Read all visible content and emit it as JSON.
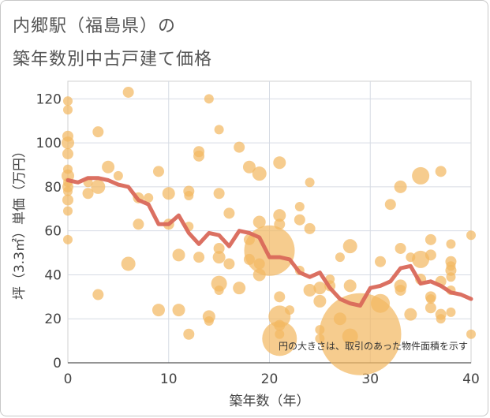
{
  "title_line1": "内郷駅（福島県）の",
  "title_line2": "築年数別中古戸建て価格",
  "chart_data": {
    "type": "scatter",
    "title": "内郷駅（福島県）の 築年数別中古戸建て価格",
    "xlabel": "築年数（年）",
    "ylabel": "坪（3.3㎡）単価（万円）",
    "xlim": [
      0,
      40
    ],
    "ylim": [
      0,
      128
    ],
    "xticks": [
      0,
      10,
      20,
      30,
      40
    ],
    "yticks": [
      0,
      20,
      40,
      60,
      80,
      100,
      120
    ],
    "grid": true,
    "note": "円の大きさは、取引のあった物件面積を示す",
    "colors": {
      "bubble": "#f3b862",
      "line": "#d9685a",
      "grid": "#d6dbe4",
      "plot_border": "#d0d0d0"
    },
    "series": [
      {
        "name": "average",
        "kind": "line",
        "x": [
          0,
          1,
          2,
          3,
          4,
          5,
          6,
          7,
          8,
          9,
          10,
          11,
          12,
          13,
          14,
          15,
          16,
          17,
          18,
          19,
          20,
          21,
          22,
          23,
          24,
          25,
          26,
          27,
          28,
          29,
          30,
          31,
          32,
          33,
          34,
          35,
          36,
          37,
          38,
          39,
          40
        ],
        "y": [
          83,
          82,
          84,
          84,
          83,
          81,
          80,
          74,
          72,
          63,
          63,
          67,
          59,
          54,
          59,
          58,
          53,
          60,
          59,
          57,
          48,
          48,
          47,
          41,
          39,
          41,
          34,
          29,
          27,
          26,
          34,
          35,
          37,
          43,
          44,
          36,
          37,
          35,
          32,
          31,
          29
        ]
      },
      {
        "name": "transactions",
        "kind": "bubble",
        "points": [
          {
            "x": 0,
            "y": 119,
            "s": 6
          },
          {
            "x": 0,
            "y": 115,
            "s": 6
          },
          {
            "x": 0,
            "y": 103,
            "s": 7
          },
          {
            "x": 0,
            "y": 100,
            "s": 8
          },
          {
            "x": 0,
            "y": 95,
            "s": 7
          },
          {
            "x": 0,
            "y": 88,
            "s": 6
          },
          {
            "x": 0,
            "y": 85,
            "s": 8
          },
          {
            "x": 0,
            "y": 82,
            "s": 6
          },
          {
            "x": 0,
            "y": 80,
            "s": 7
          },
          {
            "x": 0,
            "y": 78,
            "s": 6
          },
          {
            "x": 0,
            "y": 74,
            "s": 7
          },
          {
            "x": 0,
            "y": 69,
            "s": 6
          },
          {
            "x": 0,
            "y": 56,
            "s": 6
          },
          {
            "x": 2,
            "y": 82,
            "s": 6
          },
          {
            "x": 2,
            "y": 77,
            "s": 7
          },
          {
            "x": 3,
            "y": 105,
            "s": 7
          },
          {
            "x": 3,
            "y": 80,
            "s": 9
          },
          {
            "x": 3,
            "y": 31,
            "s": 7
          },
          {
            "x": 4,
            "y": 89,
            "s": 8
          },
          {
            "x": 5,
            "y": 85,
            "s": 6
          },
          {
            "x": 6,
            "y": 123,
            "s": 7
          },
          {
            "x": 6,
            "y": 45,
            "s": 9
          },
          {
            "x": 7,
            "y": 75,
            "s": 7
          },
          {
            "x": 7,
            "y": 63,
            "s": 7
          },
          {
            "x": 8,
            "y": 75,
            "s": 6
          },
          {
            "x": 9,
            "y": 87,
            "s": 7
          },
          {
            "x": 9,
            "y": 24,
            "s": 8
          },
          {
            "x": 10,
            "y": 77,
            "s": 8
          },
          {
            "x": 10,
            "y": 63,
            "s": 7
          },
          {
            "x": 11,
            "y": 49,
            "s": 8
          },
          {
            "x": 11,
            "y": 24,
            "s": 8
          },
          {
            "x": 12,
            "y": 78,
            "s": 7
          },
          {
            "x": 12,
            "y": 76,
            "s": 6
          },
          {
            "x": 12,
            "y": 62,
            "s": 6
          },
          {
            "x": 12,
            "y": 13,
            "s": 7
          },
          {
            "x": 13,
            "y": 96,
            "s": 7
          },
          {
            "x": 13,
            "y": 94,
            "s": 7
          },
          {
            "x": 13,
            "y": 48,
            "s": 7
          },
          {
            "x": 14,
            "y": 120,
            "s": 6
          },
          {
            "x": 14,
            "y": 21,
            "s": 8
          },
          {
            "x": 14,
            "y": 19,
            "s": 6
          },
          {
            "x": 15,
            "y": 106,
            "s": 6
          },
          {
            "x": 15,
            "y": 77,
            "s": 7
          },
          {
            "x": 15,
            "y": 52,
            "s": 7
          },
          {
            "x": 15,
            "y": 48,
            "s": 8
          },
          {
            "x": 15,
            "y": 36,
            "s": 10
          },
          {
            "x": 15,
            "y": 33,
            "s": 6
          },
          {
            "x": 16,
            "y": 68,
            "s": 7
          },
          {
            "x": 16,
            "y": 45,
            "s": 7
          },
          {
            "x": 17,
            "y": 98,
            "s": 7
          },
          {
            "x": 17,
            "y": 34,
            "s": 8
          },
          {
            "x": 18,
            "y": 89,
            "s": 8
          },
          {
            "x": 18,
            "y": 56,
            "s": 7
          },
          {
            "x": 18,
            "y": 47,
            "s": 7
          },
          {
            "x": 19,
            "y": 86,
            "s": 9
          },
          {
            "x": 19,
            "y": 64,
            "s": 8
          },
          {
            "x": 19,
            "y": 45,
            "s": 7
          },
          {
            "x": 19,
            "y": 40,
            "s": 8
          },
          {
            "x": 20,
            "y": 51,
            "s": 32
          },
          {
            "x": 21,
            "y": 91,
            "s": 8
          },
          {
            "x": 21,
            "y": 67,
            "s": 8
          },
          {
            "x": 21,
            "y": 63,
            "s": 7
          },
          {
            "x": 21,
            "y": 30,
            "s": 7
          },
          {
            "x": 21,
            "y": 21,
            "s": 14
          },
          {
            "x": 21,
            "y": 17,
            "s": 7
          },
          {
            "x": 21,
            "y": 13,
            "s": 6
          },
          {
            "x": 21,
            "y": 11,
            "s": 22
          },
          {
            "x": 22,
            "y": 24,
            "s": 6
          },
          {
            "x": 23,
            "y": 71,
            "s": 6
          },
          {
            "x": 23,
            "y": 65,
            "s": 7
          },
          {
            "x": 23,
            "y": 42,
            "s": 6
          },
          {
            "x": 24,
            "y": 82,
            "s": 6
          },
          {
            "x": 24,
            "y": 61,
            "s": 7
          },
          {
            "x": 24,
            "y": 33,
            "s": 8
          },
          {
            "x": 25,
            "y": 34,
            "s": 8
          },
          {
            "x": 25,
            "y": 28,
            "s": 8
          },
          {
            "x": 25,
            "y": 15,
            "s": 6
          },
          {
            "x": 25,
            "y": 11,
            "s": 6
          },
          {
            "x": 26,
            "y": 38,
            "s": 6
          },
          {
            "x": 26,
            "y": 35,
            "s": 7
          },
          {
            "x": 27,
            "y": 48,
            "s": 6
          },
          {
            "x": 27,
            "y": 20,
            "s": 8
          },
          {
            "x": 28,
            "y": 53,
            "s": 9
          },
          {
            "x": 28,
            "y": 35,
            "s": 8
          },
          {
            "x": 28,
            "y": 12,
            "s": 10
          },
          {
            "x": 29,
            "y": 13,
            "s": 52
          },
          {
            "x": 31,
            "y": 46,
            "s": 7
          },
          {
            "x": 31,
            "y": 27,
            "s": 12
          },
          {
            "x": 32,
            "y": 72,
            "s": 7
          },
          {
            "x": 33,
            "y": 80,
            "s": 8
          },
          {
            "x": 33,
            "y": 52,
            "s": 7
          },
          {
            "x": 33,
            "y": 35,
            "s": 8
          },
          {
            "x": 33,
            "y": 33,
            "s": 7
          },
          {
            "x": 34,
            "y": 48,
            "s": 6
          },
          {
            "x": 34,
            "y": 22,
            "s": 8
          },
          {
            "x": 35,
            "y": 85,
            "s": 11
          },
          {
            "x": 35,
            "y": 47,
            "s": 11
          },
          {
            "x": 35,
            "y": 38,
            "s": 7
          },
          {
            "x": 36,
            "y": 56,
            "s": 7
          },
          {
            "x": 36,
            "y": 49,
            "s": 7
          },
          {
            "x": 36,
            "y": 30,
            "s": 7
          },
          {
            "x": 36,
            "y": 29,
            "s": 6
          },
          {
            "x": 36,
            "y": 25,
            "s": 7
          },
          {
            "x": 37,
            "y": 87,
            "s": 7
          },
          {
            "x": 37,
            "y": 37,
            "s": 7
          },
          {
            "x": 37,
            "y": 22,
            "s": 7
          },
          {
            "x": 37,
            "y": 20,
            "s": 6
          },
          {
            "x": 38,
            "y": 54,
            "s": 6
          },
          {
            "x": 38,
            "y": 46,
            "s": 7
          },
          {
            "x": 38,
            "y": 44,
            "s": 6
          },
          {
            "x": 38,
            "y": 42,
            "s": 7
          },
          {
            "x": 38,
            "y": 39,
            "s": 6
          },
          {
            "x": 38,
            "y": 33,
            "s": 6
          },
          {
            "x": 38,
            "y": 23,
            "s": 6
          },
          {
            "x": 40,
            "y": 58,
            "s": 6
          },
          {
            "x": 40,
            "y": 13,
            "s": 6
          }
        ]
      }
    ]
  }
}
